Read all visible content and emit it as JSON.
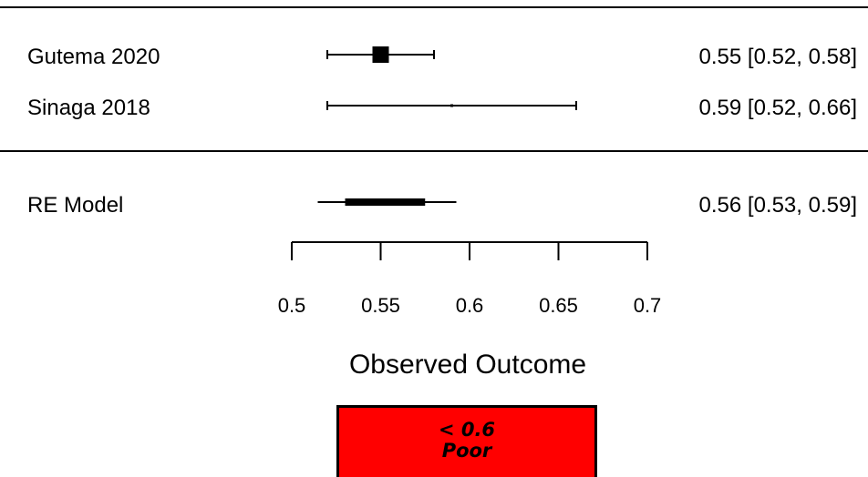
{
  "chart_data": {
    "type": "forest",
    "studies": [
      {
        "label": "Gutema 2020",
        "estimate": 0.55,
        "ci_lower": 0.52,
        "ci_upper": 0.58,
        "display": "0.55 [0.52, 0.58]"
      },
      {
        "label": "Sinaga 2018",
        "estimate": 0.59,
        "ci_lower": 0.52,
        "ci_upper": 0.66,
        "display": "0.59 [0.52, 0.66]"
      }
    ],
    "summary": {
      "label": "RE Model",
      "estimate": 0.56,
      "ci_lower": 0.53,
      "ci_upper": 0.59,
      "display": "0.56 [0.53, 0.59]"
    },
    "x_ticks": [
      0.5,
      0.55,
      0.6,
      0.65,
      0.7
    ],
    "x_tick_labels": [
      "0.5",
      "0.55",
      "0.6",
      "0.65",
      "0.7"
    ],
    "xlim": [
      0.5,
      0.7
    ],
    "xlabel": "Observed Outcome"
  },
  "legend_box": {
    "line1": "< 0.6",
    "line2": "Poor",
    "color": "#ff0000"
  }
}
